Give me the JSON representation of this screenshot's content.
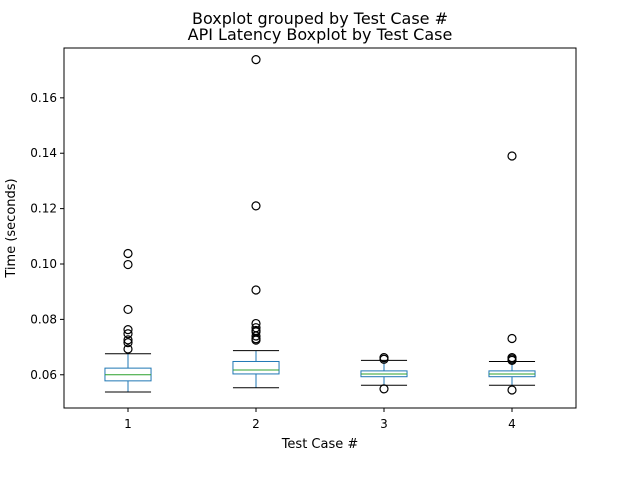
{
  "chart_data": {
    "type": "boxplot",
    "suptitle": "Boxplot grouped by Test Case #",
    "title": "API Latency Boxplot by Test Case",
    "xlabel": "Test Case #",
    "ylabel": "Time (seconds)",
    "ylim": [
      0.048,
      0.178
    ],
    "yticks": [
      0.06,
      0.08,
      0.1,
      0.12,
      0.14,
      0.16
    ],
    "ytick_labels": [
      "0.06",
      "0.08",
      "0.10",
      "0.12",
      "0.14",
      "0.16"
    ],
    "grid": false,
    "colors": {
      "box": "#1f77b4",
      "median": "#2ca02c",
      "whisker": "#1f77b4",
      "cap": "#000000",
      "flier": "#000000"
    },
    "categories": [
      "1",
      "2",
      "3",
      "4"
    ],
    "boxes": [
      {
        "category": "1",
        "whisker_low": 0.0538,
        "q1": 0.0578,
        "median": 0.06,
        "q3": 0.0624,
        "whisker_high": 0.0676,
        "fliers": [
          0.1038,
          0.0998,
          0.0836,
          0.0763,
          0.0748,
          0.0726,
          0.0716,
          0.0693
        ]
      },
      {
        "category": "2",
        "whisker_low": 0.0553,
        "q1": 0.0603,
        "median": 0.0617,
        "q3": 0.0648,
        "whisker_high": 0.0687,
        "fliers": [
          0.1738,
          0.121,
          0.0906,
          0.0785,
          0.077,
          0.076,
          0.0755,
          0.074,
          0.073,
          0.0725
        ]
      },
      {
        "category": "3",
        "whisker_low": 0.0562,
        "q1": 0.0593,
        "median": 0.0603,
        "q3": 0.0614,
        "whisker_high": 0.0652,
        "fliers": [
          0.0662,
          0.0656,
          0.0549
        ]
      },
      {
        "category": "4",
        "whisker_low": 0.0562,
        "q1": 0.0593,
        "median": 0.0603,
        "q3": 0.0614,
        "whisker_high": 0.0648,
        "fliers": [
          0.139,
          0.0731,
          0.0662,
          0.0657,
          0.0652,
          0.0545
        ]
      }
    ]
  }
}
